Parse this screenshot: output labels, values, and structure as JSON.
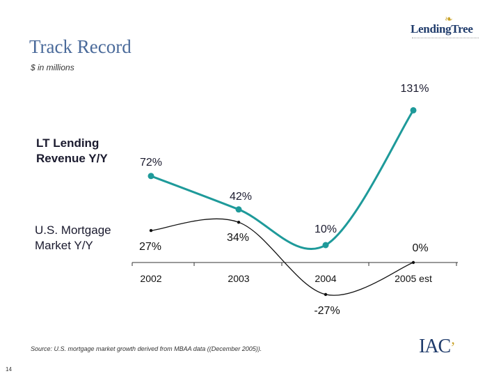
{
  "slide": {
    "title": "Track Record",
    "subtitle": "$ in millions",
    "source_note": "Source: U.S. mortgage market growth derived from MBAA data ((December 2005)).",
    "page_number": "14"
  },
  "logos": {
    "lendingtree": "LendingTree",
    "iac": "IAC"
  },
  "colors": {
    "lt_series": "#1e9a9a",
    "market_series": "#111111",
    "title": "#4a6a9a"
  },
  "chart_data": {
    "type": "line",
    "categories": [
      "2002",
      "2003",
      "2004",
      "2005 est"
    ],
    "series": [
      {
        "name": "LT Lending Revenue Y/Y",
        "values": [
          72,
          42,
          10,
          131
        ],
        "labels": [
          "72%",
          "42%",
          "10%",
          "131%"
        ]
      },
      {
        "name": "U.S. Mortgage Market Y/Y",
        "values": [
          27,
          34,
          -27,
          0
        ],
        "labels": [
          "27%",
          "34%",
          "-27%",
          "0%"
        ]
      }
    ],
    "series_labels": {
      "lt": [
        "LT Lending",
        "Revenue Y/Y"
      ],
      "market": [
        "U.S. Mortgage",
        "Market Y/Y"
      ]
    },
    "title": "Track Record",
    "xlabel": "",
    "ylabel": ""
  }
}
